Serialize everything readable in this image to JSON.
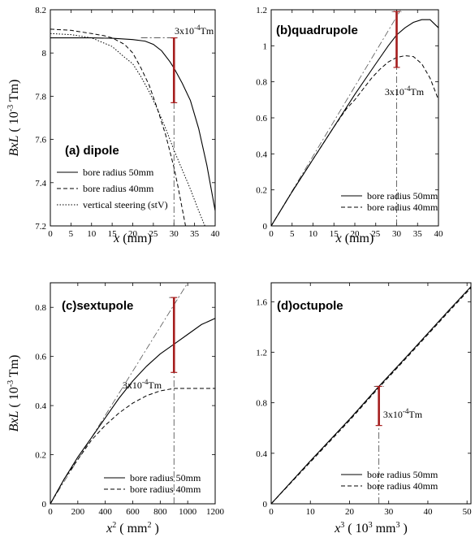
{
  "chart_data": [
    {
      "type": "line",
      "title": "(a) dipole",
      "xlabel": "x (mm)",
      "ylabel": "BxL ( 10-3 Tm)",
      "xlim": [
        0,
        40
      ],
      "ylim": [
        7.2,
        8.2
      ],
      "xticks": [
        0,
        5,
        10,
        15,
        20,
        25,
        30,
        35,
        40
      ],
      "yticks": [
        7.2,
        7.4,
        7.6,
        7.8,
        8.0,
        8.2
      ],
      "ytick_labels": [
        "7.2",
        "7.4",
        "7.6",
        "7.8",
        "8",
        "8.2"
      ],
      "legend_position": "bottom-left",
      "series": [
        {
          "name": "bore radius 50mm",
          "style": "solid",
          "points": [
            [
              0,
              8.07
            ],
            [
              5,
              8.07
            ],
            [
              10,
              8.07
            ],
            [
              15,
              8.068
            ],
            [
              20,
              8.062
            ],
            [
              23,
              8.055
            ],
            [
              25,
              8.04
            ],
            [
              27,
              8.01
            ],
            [
              29,
              7.96
            ],
            [
              30,
              7.93
            ],
            [
              32,
              7.86
            ],
            [
              34,
              7.78
            ],
            [
              36,
              7.65
            ],
            [
              38,
              7.48
            ],
            [
              40,
              7.27
            ]
          ]
        },
        {
          "name": "bore radius 40mm",
          "style": "dashed",
          "points": [
            [
              0,
              8.11
            ],
            [
              5,
              8.105
            ],
            [
              10,
              8.09
            ],
            [
              13,
              8.08
            ],
            [
              15,
              8.07
            ],
            [
              18,
              8.04
            ],
            [
              20,
              8.0
            ],
            [
              22,
              7.93
            ],
            [
              24,
              7.85
            ],
            [
              26,
              7.74
            ],
            [
              28,
              7.62
            ],
            [
              30,
              7.47
            ],
            [
              31,
              7.38
            ],
            [
              32,
              7.28
            ],
            [
              32.8,
              7.2
            ]
          ]
        },
        {
          "name": "vertical steering (stV)",
          "style": "dotted",
          "points": [
            [
              0,
              8.09
            ],
            [
              5,
              8.085
            ],
            [
              10,
              8.07
            ],
            [
              15,
              8.03
            ],
            [
              18,
              7.98
            ],
            [
              20,
              7.95
            ],
            [
              22,
              7.89
            ],
            [
              24,
              7.82
            ],
            [
              26,
              7.74
            ],
            [
              28,
              7.65
            ],
            [
              30,
              7.55
            ],
            [
              32,
              7.46
            ],
            [
              34,
              7.37
            ],
            [
              36,
              7.27
            ],
            [
              37.5,
              7.2
            ]
          ]
        }
      ],
      "annotation": {
        "text": "3x10",
        "sup": "-4",
        "unit": "Tm",
        "x": 30,
        "y_low": 7.77,
        "y_high": 8.07
      }
    },
    {
      "type": "line",
      "title": "(b)quadrupole",
      "xlabel": "x (mm)",
      "ylabel": "",
      "xlim": [
        0,
        40
      ],
      "ylim": [
        0,
        1.2
      ],
      "xticks": [
        0,
        5,
        10,
        15,
        20,
        25,
        30,
        35,
        40
      ],
      "yticks": [
        0,
        0.2,
        0.4,
        0.6,
        0.8,
        1.0,
        1.2
      ],
      "ytick_labels": [
        "0",
        "0.2",
        "0.4",
        "0.6",
        "0.8",
        "1",
        "1.2"
      ],
      "legend_position": "bottom-right",
      "series": [
        {
          "name": "bore radius 50mm",
          "style": "solid",
          "points": [
            [
              0,
              0
            ],
            [
              5,
              0.19
            ],
            [
              10,
              0.37
            ],
            [
              15,
              0.55
            ],
            [
              20,
              0.73
            ],
            [
              25,
              0.9
            ],
            [
              28,
              1.0
            ],
            [
              30,
              1.06
            ],
            [
              32,
              1.1
            ],
            [
              34,
              1.13
            ],
            [
              36,
              1.145
            ],
            [
              38,
              1.145
            ],
            [
              40,
              1.1
            ]
          ]
        },
        {
          "name": "bore radius 40mm",
          "style": "dashed",
          "points": [
            [
              0,
              0
            ],
            [
              5,
              0.19
            ],
            [
              10,
              0.37
            ],
            [
              15,
              0.55
            ],
            [
              18,
              0.65
            ],
            [
              20,
              0.7
            ],
            [
              22,
              0.76
            ],
            [
              24,
              0.82
            ],
            [
              26,
              0.87
            ],
            [
              28,
              0.91
            ],
            [
              30,
              0.935
            ],
            [
              32,
              0.945
            ],
            [
              34,
              0.94
            ],
            [
              36,
              0.9
            ],
            [
              38,
              0.82
            ],
            [
              40,
              0.7
            ]
          ]
        }
      ],
      "linear_ref": {
        "from": [
          0,
          0
        ],
        "to": [
          31,
          1.2
        ]
      },
      "annotation": {
        "text": "3x10",
        "sup": "-4",
        "unit": "Tm",
        "x": 30,
        "y_low": 0.88,
        "y_high": 1.19
      }
    },
    {
      "type": "line",
      "title": "(c)sextupole",
      "xlabel": "x2 ( mm2 )",
      "ylabel": "BxL ( 10-3 Tm)",
      "xlim": [
        0,
        1200
      ],
      "ylim": [
        0,
        0.9
      ],
      "xticks": [
        0,
        200,
        400,
        600,
        800,
        1000,
        1200
      ],
      "yticks": [
        0,
        0.2,
        0.4,
        0.6,
        0.8
      ],
      "ytick_labels": [
        "0",
        "0.2",
        "0.4",
        "0.6",
        "0.8"
      ],
      "legend_position": "bottom-right",
      "series": [
        {
          "name": "bore radius 50mm",
          "style": "solid",
          "points": [
            [
              0,
              0
            ],
            [
              100,
              0.1
            ],
            [
              200,
              0.19
            ],
            [
              300,
              0.27
            ],
            [
              400,
              0.35
            ],
            [
              500,
              0.43
            ],
            [
              600,
              0.5
            ],
            [
              700,
              0.56
            ],
            [
              800,
              0.61
            ],
            [
              900,
              0.65
            ],
            [
              1000,
              0.69
            ],
            [
              1100,
              0.73
            ],
            [
              1200,
              0.755
            ]
          ]
        },
        {
          "name": "bore radius 40mm",
          "style": "dashed",
          "points": [
            [
              0,
              0
            ],
            [
              100,
              0.1
            ],
            [
              200,
              0.18
            ],
            [
              300,
              0.26
            ],
            [
              400,
              0.32
            ],
            [
              500,
              0.37
            ],
            [
              600,
              0.41
            ],
            [
              700,
              0.44
            ],
            [
              800,
              0.46
            ],
            [
              900,
              0.47
            ],
            [
              1000,
              0.47
            ],
            [
              1100,
              0.47
            ],
            [
              1200,
              0.47
            ]
          ]
        }
      ],
      "linear_ref": {
        "from": [
          0,
          0
        ],
        "to": [
          1000,
          0.9
        ]
      },
      "annotation": {
        "text": "3x10",
        "sup": "-4",
        "unit": "Tm",
        "x": 900,
        "y_low": 0.535,
        "y_high": 0.84
      }
    },
    {
      "type": "line",
      "title": "(d)octupole",
      "xlabel": "x3 ( 103 mm3 )",
      "ylabel": "",
      "xlim": [
        0,
        51
      ],
      "ylim": [
        0,
        1.75
      ],
      "xticks": [
        0,
        10,
        20,
        30,
        40,
        50
      ],
      "yticks": [
        0,
        0.4,
        0.8,
        1.2,
        1.6
      ],
      "ytick_labels": [
        "0",
        "0.4",
        "0.8",
        "1.2",
        "1.6"
      ],
      "legend_position": "bottom-right",
      "series": [
        {
          "name": "bore radius 50mm",
          "style": "solid",
          "points": [
            [
              0,
              0
            ],
            [
              10,
              0.34
            ],
            [
              20,
              0.67
            ],
            [
              27.5,
              0.93
            ],
            [
              35,
              1.18
            ],
            [
              40,
              1.35
            ],
            [
              45,
              1.52
            ],
            [
              51,
              1.72
            ]
          ]
        },
        {
          "name": "bore radius 40mm",
          "style": "dashed",
          "points": [
            [
              0,
              0
            ],
            [
              10,
              0.33
            ],
            [
              20,
              0.66
            ],
            [
              27.5,
              0.92
            ],
            [
              35,
              1.17
            ],
            [
              40,
              1.34
            ],
            [
              45,
              1.51
            ],
            [
              51,
              1.71
            ]
          ]
        }
      ],
      "annotation": {
        "text": "3x10",
        "sup": "-4",
        "unit": "Tm",
        "x": 27.5,
        "y_low": 0.62,
        "y_high": 0.93
      }
    }
  ],
  "colors": {
    "error_bar": "#a51d1d",
    "axis": "#000000"
  }
}
